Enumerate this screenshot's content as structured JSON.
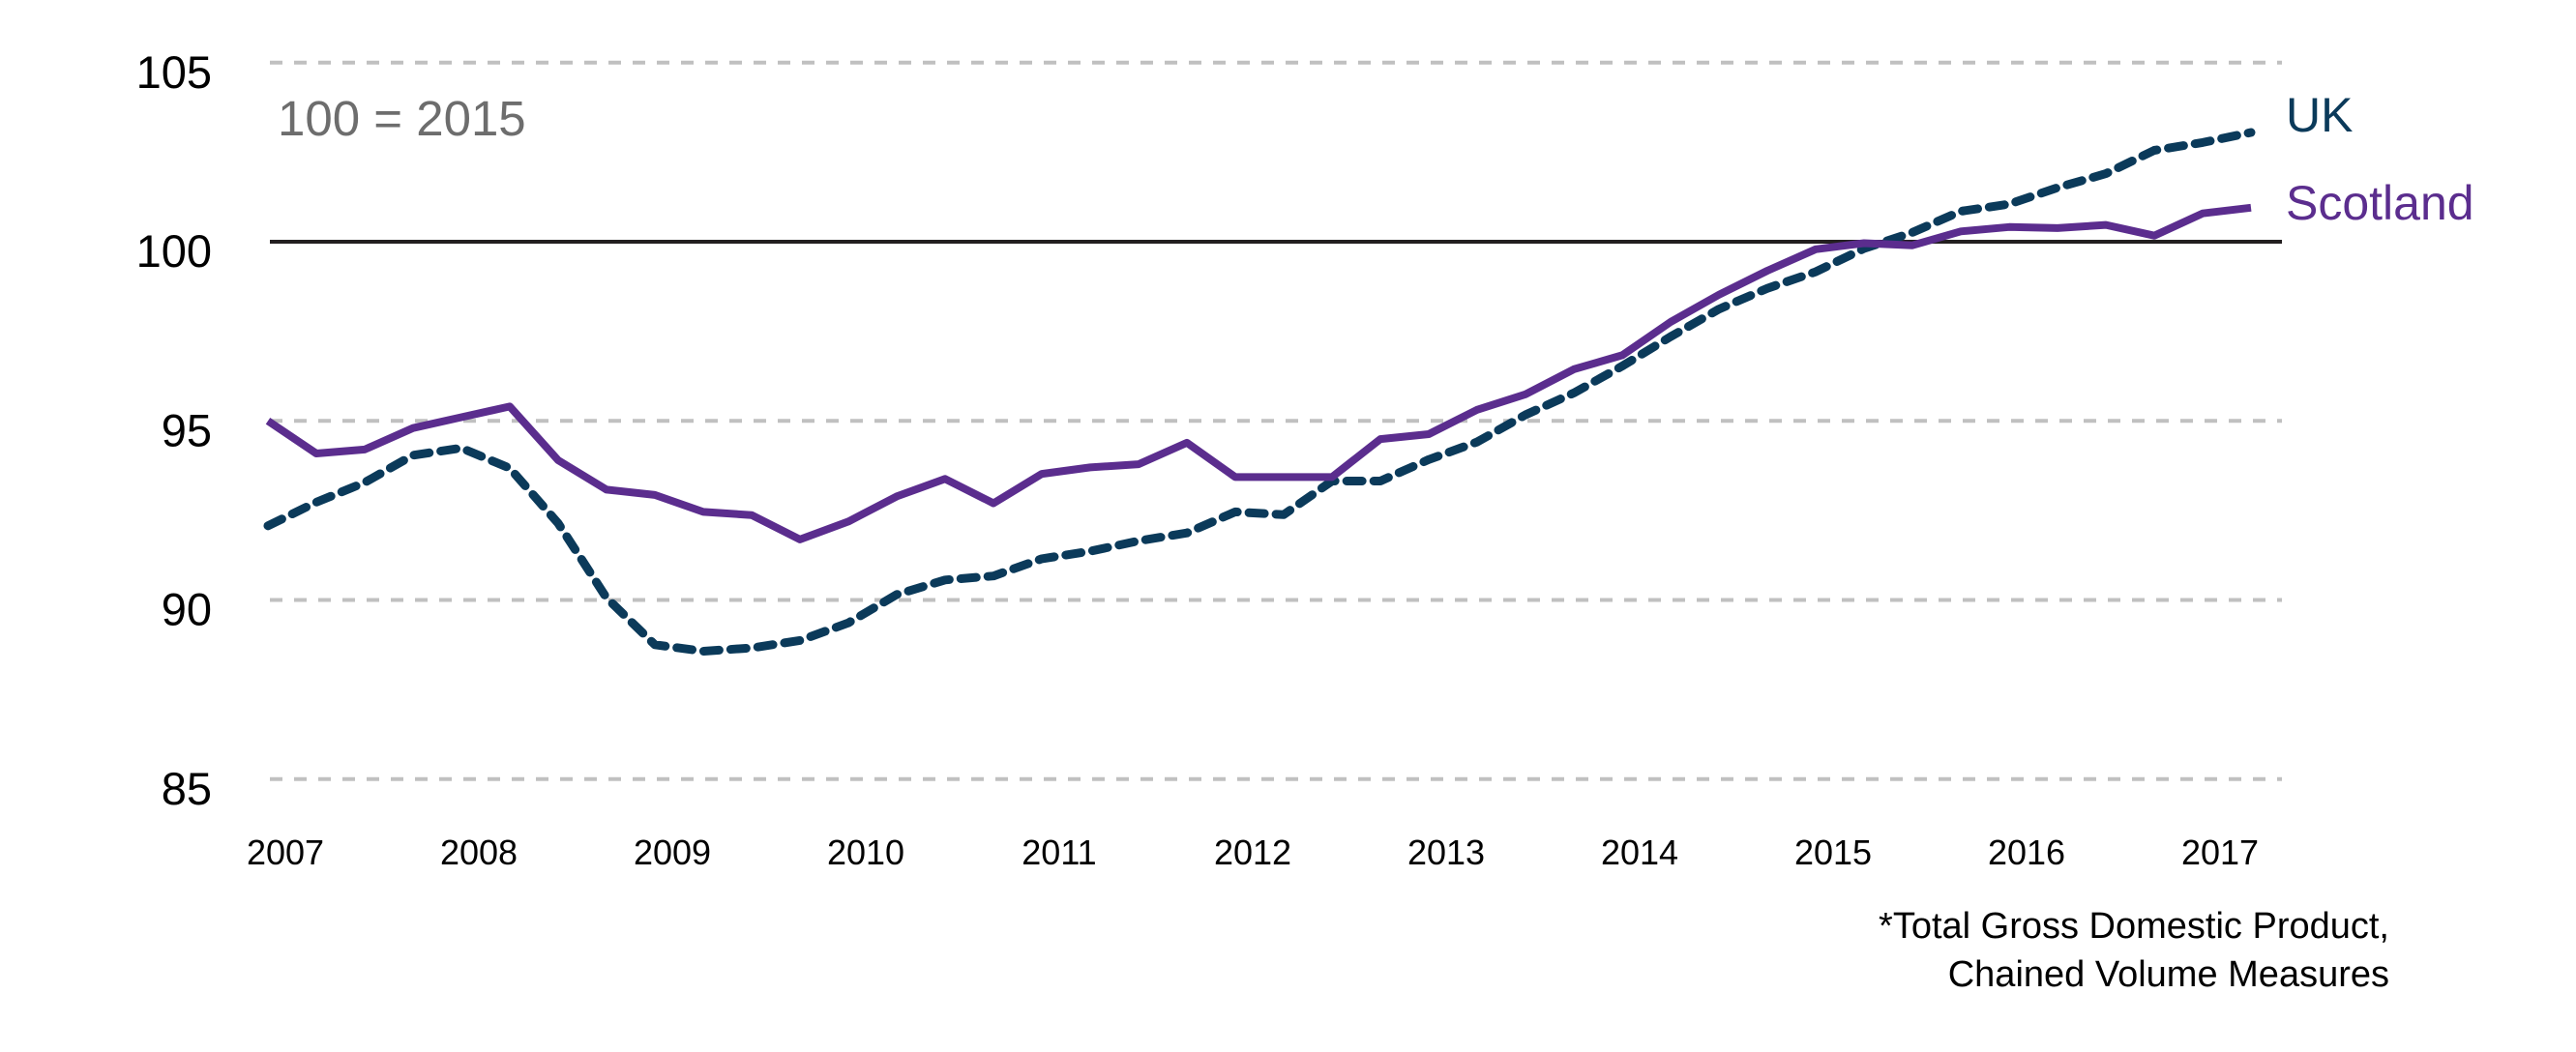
{
  "chart_data": {
    "type": "line",
    "title": "",
    "xlabel": "",
    "ylabel": "",
    "ylim": [
      85,
      105
    ],
    "yticks": [
      85,
      90,
      95,
      100,
      105
    ],
    "grid": true,
    "reference_line": 100,
    "x_tick_labels": [
      "2007",
      "2008",
      "2009",
      "2010",
      "2011",
      "2012",
      "2013",
      "2014",
      "2015",
      "2016",
      "2017"
    ],
    "x_frequency": "quarterly",
    "x": [
      "2007 Q1",
      "2007 Q2",
      "2007 Q3",
      "2007 Q4",
      "2008 Q1",
      "2008 Q2",
      "2008 Q3",
      "2008 Q4",
      "2009 Q1",
      "2009 Q2",
      "2009 Q3",
      "2009 Q4",
      "2010 Q1",
      "2010 Q2",
      "2010 Q3",
      "2010 Q4",
      "2011 Q1",
      "2011 Q2",
      "2011 Q3",
      "2011 Q4",
      "2012 Q1",
      "2012 Q2",
      "2012 Q3",
      "2012 Q4",
      "2013 Q1",
      "2013 Q2",
      "2013 Q3",
      "2013 Q4",
      "2014 Q1",
      "2014 Q2",
      "2014 Q3",
      "2014 Q4",
      "2015 Q1",
      "2015 Q2",
      "2015 Q3",
      "2015 Q4",
      "2016 Q1",
      "2016 Q2",
      "2016 Q3",
      "2016 Q4",
      "2017 Q1",
      "2017 Q2"
    ],
    "series": [
      {
        "name": "UK",
        "style": "dashed",
        "color": "#0b3a5a",
        "values": [
          92.07,
          92.73,
          93.28,
          94.04,
          94.24,
          93.68,
          92.14,
          90.06,
          88.75,
          88.57,
          88.66,
          88.87,
          89.36,
          90.15,
          90.56,
          90.67,
          91.15,
          91.36,
          91.65,
          91.87,
          92.46,
          92.38,
          93.32,
          93.32,
          93.92,
          94.41,
          95.17,
          95.78,
          96.53,
          97.35,
          98.12,
          98.7,
          99.16,
          99.81,
          100.26,
          100.85,
          101.05,
          101.51,
          101.9,
          102.55,
          102.77,
          103.05
        ]
      },
      {
        "name": "Scotland",
        "style": "solid",
        "color": "#5b2d8e",
        "values": [
          95.0,
          94.09,
          94.2,
          94.8,
          95.1,
          95.4,
          93.9,
          93.08,
          92.93,
          92.46,
          92.37,
          91.69,
          92.19,
          92.89,
          93.38,
          92.7,
          93.52,
          93.7,
          93.79,
          94.39,
          93.43,
          93.43,
          93.43,
          94.49,
          94.63,
          95.31,
          95.74,
          96.44,
          96.83,
          97.76,
          98.52,
          99.19,
          99.79,
          99.96,
          99.9,
          100.29,
          100.41,
          100.38,
          100.47,
          100.17,
          100.79,
          100.95
        ]
      }
    ],
    "annotations": {
      "base_note": "100 = 2015",
      "footnote_line1": "*Total Gross Domestic Product,",
      "footnote_line2": "Chained Volume Measures"
    },
    "legend": "right-end-labels",
    "colors": {
      "grid": "#c0c0c0",
      "reference": "#231f20",
      "base_note": "#6d6d6d"
    }
  }
}
